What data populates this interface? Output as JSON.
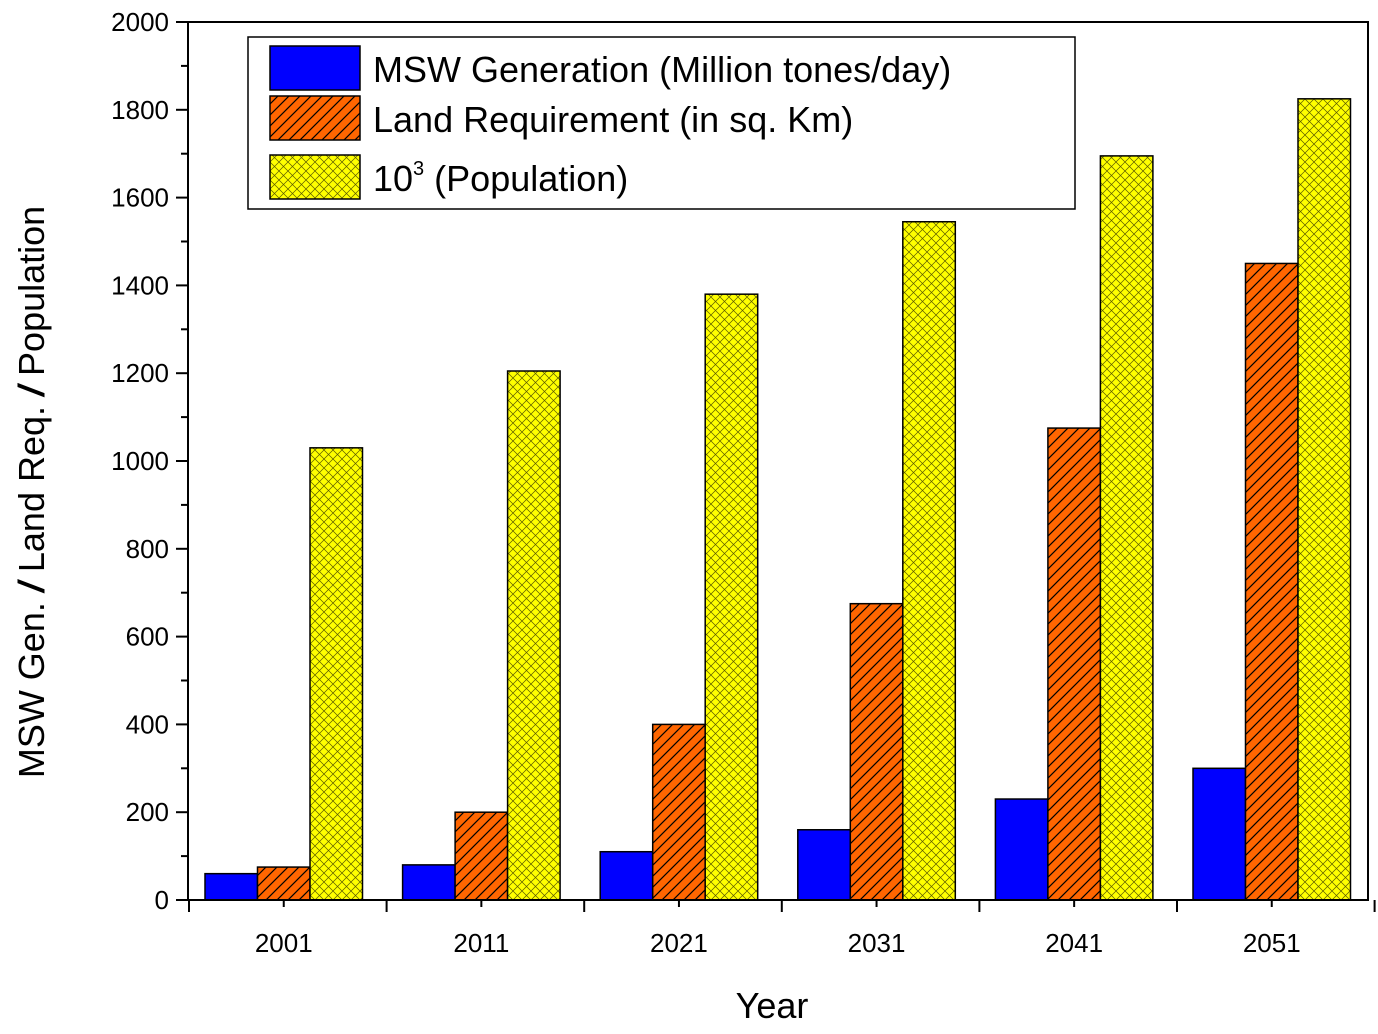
{
  "chart_data": {
    "type": "bar",
    "xlabel": "Year",
    "ylabel": {
      "part1": "MSW Gen. ",
      "sep1": "/",
      "part2": " Land Req. ",
      "sep2": "/",
      "part3": " Population"
    },
    "categories": [
      "2001",
      "2011",
      "2021",
      "2031",
      "2041",
      "2051"
    ],
    "ylim": [
      0,
      2000
    ],
    "yticks": [
      "0",
      "200",
      "400",
      "600",
      "800",
      "1000",
      "1200",
      "1400",
      "1600",
      "1800",
      "2000"
    ],
    "grid": false,
    "legend_position": "top-left",
    "series": [
      {
        "name": "MSW Generation (Million tones/day)",
        "values": [
          60,
          80,
          110,
          160,
          230,
          300
        ],
        "color": "#0000ff",
        "pattern": "solid"
      },
      {
        "name": "Land Requirement (in sq. Km)",
        "values": [
          75,
          200,
          400,
          675,
          1075,
          1450
        ],
        "color": "#ff6600",
        "pattern": "diagonal-hatch"
      },
      {
        "name_base": "10",
        "name_sup": "3",
        "name_rest": " (Population)",
        "values": [
          1030,
          1205,
          1380,
          1545,
          1695,
          1825
        ],
        "color": "#ffff00",
        "pattern": "cross-hatch"
      }
    ]
  }
}
